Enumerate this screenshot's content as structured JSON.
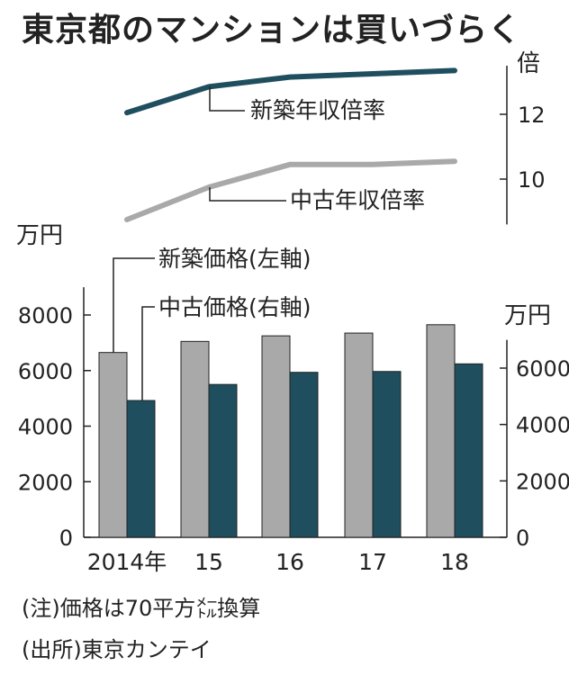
{
  "chart_data": {
    "type": "bar",
    "title": "東京都のマンションは買いづらく",
    "categories": [
      "2014年",
      "15",
      "16",
      "17",
      "18"
    ],
    "left_axis": {
      "unit_label": "万円",
      "ticks": [
        0,
        2000,
        4000,
        6000,
        8000
      ],
      "ylim": [
        0,
        9000
      ]
    },
    "right_axis": {
      "unit_label": "万円",
      "ticks": [
        0,
        2000,
        4000,
        6000
      ],
      "ylim": [
        0,
        7000
      ]
    },
    "ratio_axis": {
      "unit_label": "倍",
      "ticks": [
        10,
        12
      ],
      "ylim": [
        8.6,
        13.5
      ]
    },
    "series": [
      {
        "name": "新築価格(左軸)",
        "axis": "left",
        "kind": "bar",
        "color": "#a9a9a9",
        "values": [
          6650,
          7050,
          7250,
          7350,
          7650
        ]
      },
      {
        "name": "中古価格(右軸)",
        "axis": "right",
        "kind": "bar",
        "color": "#1f4e5e",
        "values": [
          4850,
          5420,
          5850,
          5880,
          6150
        ]
      },
      {
        "name": "新築年収倍率",
        "axis": "ratio",
        "kind": "line",
        "color": "#1f4e5e",
        "values": [
          12.05,
          12.85,
          13.15,
          13.25,
          13.35
        ]
      },
      {
        "name": "中古年収倍率",
        "axis": "ratio",
        "kind": "line",
        "color": "#a9a9a9",
        "values": [
          8.75,
          9.75,
          10.45,
          10.45,
          10.55
        ]
      }
    ]
  },
  "notes": [
    "(注)価格は70平方㍍換算",
    "(出所)東京カンテイ"
  ]
}
